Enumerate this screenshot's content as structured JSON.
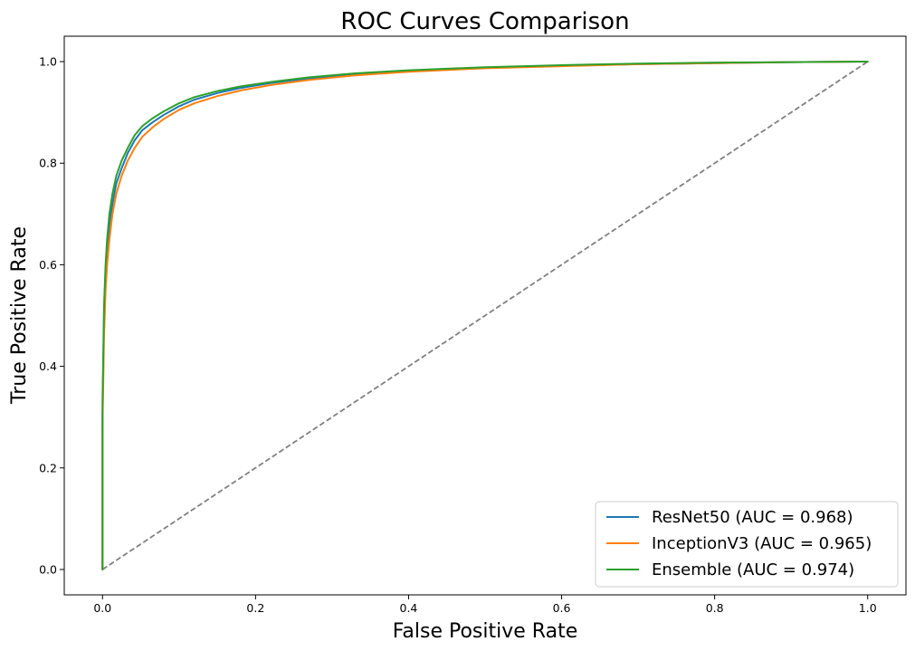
{
  "chart_data": {
    "type": "line",
    "title": "ROC Curves Comparison",
    "xlabel": "False Positive Rate",
    "ylabel": "True Positive Rate",
    "xlim": [
      -0.05,
      1.05
    ],
    "ylim": [
      -0.05,
      1.05
    ],
    "xticks": [
      "0.0",
      "0.2",
      "0.4",
      "0.6",
      "0.8",
      "1.0"
    ],
    "yticks": [
      "0.0",
      "0.2",
      "0.4",
      "0.6",
      "0.8",
      "1.0"
    ],
    "grid": false,
    "legend_position": "lower right",
    "series": [
      {
        "name": "ResNet50 (AUC = 0.968)",
        "color": "#1f77b4",
        "x": [
          0.0,
          0.0,
          0.002,
          0.004,
          0.006,
          0.009,
          0.013,
          0.018,
          0.025,
          0.033,
          0.042,
          0.052,
          0.065,
          0.08,
          0.1,
          0.12,
          0.15,
          0.18,
          0.22,
          0.27,
          0.33,
          0.4,
          0.5,
          0.6,
          0.7,
          0.8,
          0.9,
          1.0
        ],
        "y": [
          0.0,
          0.3,
          0.5,
          0.58,
          0.63,
          0.68,
          0.72,
          0.76,
          0.79,
          0.82,
          0.845,
          0.865,
          0.88,
          0.895,
          0.912,
          0.925,
          0.938,
          0.948,
          0.958,
          0.967,
          0.975,
          0.982,
          0.988,
          0.992,
          0.995,
          0.997,
          0.999,
          1.0
        ]
      },
      {
        "name": "InceptionV3 (AUC = 0.965)",
        "color": "#ff7f0e",
        "x": [
          0.0,
          0.0,
          0.002,
          0.004,
          0.006,
          0.009,
          0.013,
          0.018,
          0.025,
          0.033,
          0.042,
          0.052,
          0.065,
          0.08,
          0.1,
          0.12,
          0.15,
          0.18,
          0.22,
          0.27,
          0.33,
          0.4,
          0.5,
          0.6,
          0.7,
          0.8,
          0.9,
          1.0
        ],
        "y": [
          0.0,
          0.28,
          0.46,
          0.55,
          0.6,
          0.65,
          0.7,
          0.74,
          0.775,
          0.805,
          0.83,
          0.852,
          0.87,
          0.887,
          0.905,
          0.918,
          0.932,
          0.943,
          0.954,
          0.964,
          0.973,
          0.98,
          0.987,
          0.991,
          0.995,
          0.997,
          0.999,
          1.0
        ]
      },
      {
        "name": "Ensemble (AUC = 0.974)",
        "color": "#2ca02c",
        "x": [
          0.0,
          0.0,
          0.002,
          0.004,
          0.006,
          0.009,
          0.013,
          0.018,
          0.025,
          0.033,
          0.042,
          0.052,
          0.065,
          0.08,
          0.1,
          0.12,
          0.15,
          0.18,
          0.22,
          0.27,
          0.33,
          0.4,
          0.5,
          0.6,
          0.7,
          0.8,
          0.9,
          1.0
        ],
        "y": [
          0.0,
          0.33,
          0.52,
          0.6,
          0.65,
          0.7,
          0.74,
          0.775,
          0.805,
          0.83,
          0.855,
          0.873,
          0.888,
          0.902,
          0.918,
          0.93,
          0.942,
          0.951,
          0.96,
          0.969,
          0.977,
          0.983,
          0.989,
          0.993,
          0.996,
          0.998,
          0.999,
          1.0
        ]
      }
    ],
    "reference_line": {
      "x": [
        0,
        1
      ],
      "y": [
        0,
        1
      ],
      "color": "#808080",
      "style": "dashed"
    }
  }
}
